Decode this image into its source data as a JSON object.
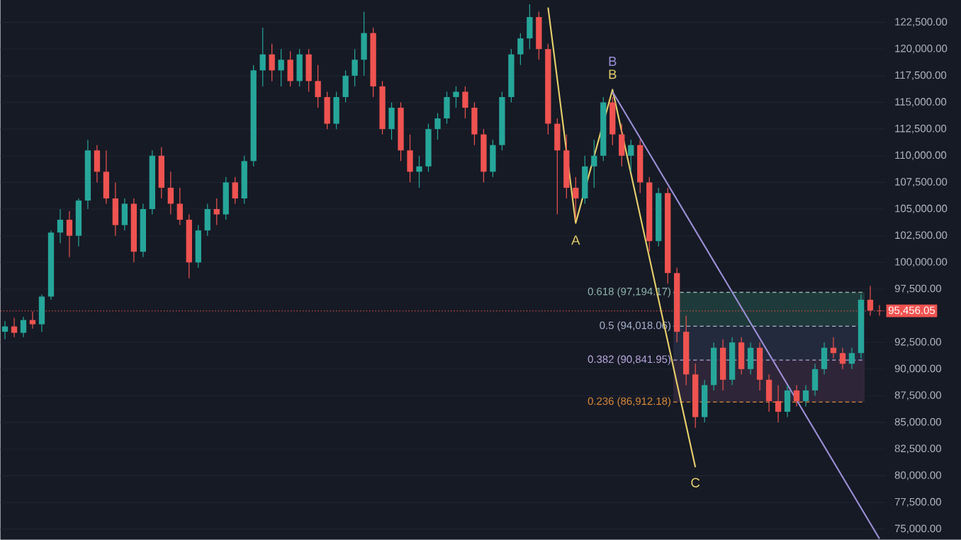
{
  "chart_data": {
    "type": "candlestick",
    "categories": [
      null,
      null,
      null,
      null,
      null,
      null,
      null,
      null,
      null,
      null,
      null,
      null,
      null,
      null,
      null,
      null,
      null,
      null,
      null,
      null,
      null,
      null,
      null,
      null,
      null,
      null,
      null,
      null,
      null,
      null,
      null,
      null,
      null,
      null,
      null,
      null,
      null,
      null,
      null,
      null,
      null,
      null,
      null,
      null,
      null,
      null,
      null,
      null,
      null,
      null,
      null,
      null,
      null,
      null,
      null,
      null,
      null,
      null,
      null,
      null,
      null,
      null,
      null,
      null,
      null,
      null,
      null,
      null,
      null,
      null,
      null,
      null,
      null,
      null,
      null,
      null,
      null,
      null,
      null,
      null,
      null,
      null,
      null,
      null,
      null,
      null,
      null,
      null,
      null,
      null,
      null,
      null,
      null,
      null,
      null,
      null
    ],
    "ohlc": [
      [
        93500,
        94500,
        92800,
        94000
      ],
      [
        94000,
        94800,
        93000,
        93400
      ],
      [
        93400,
        94900,
        93000,
        94600
      ],
      [
        94600,
        95400,
        93800,
        94200
      ],
      [
        94200,
        97000,
        93500,
        96800
      ],
      [
        96800,
        103000,
        96500,
        102800
      ],
      [
        102800,
        105000,
        101800,
        104000
      ],
      [
        104000,
        104800,
        100500,
        102500
      ],
      [
        102500,
        106000,
        101500,
        105800
      ],
      [
        105800,
        111500,
        105000,
        110500
      ],
      [
        110500,
        111000,
        107500,
        108500
      ],
      [
        108500,
        110500,
        105500,
        106000
      ],
      [
        106000,
        107500,
        102500,
        103500
      ],
      [
        103500,
        106000,
        103000,
        105500
      ],
      [
        105500,
        106000,
        100000,
        101000
      ],
      [
        101000,
        105500,
        100500,
        105000
      ],
      [
        105000,
        110500,
        104500,
        110000
      ],
      [
        110000,
        110800,
        106000,
        107000
      ],
      [
        107000,
        108500,
        104500,
        105500
      ],
      [
        105500,
        107000,
        103500,
        104000
      ],
      [
        104000,
        104500,
        98500,
        100000
      ],
      [
        100000,
        103500,
        99500,
        103000
      ],
      [
        103000,
        105500,
        102500,
        105000
      ],
      [
        105000,
        106000,
        103500,
        104500
      ],
      [
        104500,
        108000,
        104000,
        107500
      ],
      [
        107500,
        108000,
        105500,
        106000
      ],
      [
        106000,
        110000,
        105500,
        109500
      ],
      [
        109500,
        118500,
        109000,
        118000
      ],
      [
        118000,
        122000,
        116500,
        119500
      ],
      [
        119500,
        120500,
        117000,
        118000
      ],
      [
        118000,
        120000,
        116500,
        119000
      ],
      [
        119000,
        119800,
        116500,
        117000
      ],
      [
        117000,
        120000,
        116500,
        119500
      ],
      [
        119500,
        120000,
        116000,
        117000
      ],
      [
        117000,
        118500,
        114500,
        115500
      ],
      [
        115500,
        116000,
        112500,
        113000
      ],
      [
        113000,
        116000,
        112500,
        115500
      ],
      [
        115500,
        118000,
        115000,
        117500
      ],
      [
        117500,
        120000,
        116500,
        119000
      ],
      [
        119000,
        123500,
        117500,
        121500
      ],
      [
        121500,
        122000,
        115500,
        116500
      ],
      [
        116500,
        117000,
        112000,
        112500
      ],
      [
        112500,
        115000,
        111500,
        114500
      ],
      [
        114500,
        115000,
        109500,
        110500
      ],
      [
        110500,
        112000,
        107500,
        108500
      ],
      [
        108500,
        110000,
        107000,
        109000
      ],
      [
        109000,
        113000,
        108500,
        112500
      ],
      [
        112500,
        114000,
        111500,
        113500
      ],
      [
        113500,
        116000,
        113000,
        115500
      ],
      [
        115500,
        116500,
        114500,
        116000
      ],
      [
        116000,
        116500,
        113500,
        114500
      ],
      [
        114500,
        115000,
        111000,
        112000
      ],
      [
        112000,
        112500,
        107500,
        108500
      ],
      [
        108500,
        111500,
        108000,
        111000
      ],
      [
        111000,
        116000,
        110500,
        115500
      ],
      [
        115500,
        120000,
        115000,
        119500
      ],
      [
        119500,
        121500,
        118500,
        121000
      ],
      [
        121000,
        124200,
        120000,
        123000
      ],
      [
        123000,
        123500,
        119000,
        120000
      ],
      [
        120000,
        120500,
        112000,
        113000
      ],
      [
        113000,
        113500,
        104500,
        110500
      ],
      [
        110500,
        112000,
        106000,
        107000
      ],
      [
        107000,
        108000,
        104000,
        106000
      ],
      [
        106000,
        110000,
        105500,
        109000
      ],
      [
        109000,
        111500,
        107000,
        110000
      ],
      [
        110000,
        115500,
        109500,
        115000
      ],
      [
        115000,
        115500,
        111000,
        112000
      ],
      [
        112000,
        113000,
        109000,
        110000
      ],
      [
        110000,
        111500,
        108500,
        111000
      ],
      [
        111000,
        111500,
        106500,
        107500
      ],
      [
        107500,
        108000,
        101000,
        102000
      ],
      [
        102000,
        107000,
        101500,
        106500
      ],
      [
        106500,
        107000,
        98000,
        99000
      ],
      [
        99000,
        99500,
        92500,
        93500
      ],
      [
        93500,
        95000,
        88500,
        89500
      ],
      [
        89500,
        90500,
        84500,
        85500
      ],
      [
        85500,
        89000,
        85000,
        88500
      ],
      [
        88500,
        92500,
        88000,
        92000
      ],
      [
        92000,
        92800,
        88000,
        89000
      ],
      [
        89000,
        93000,
        88500,
        92500
      ],
      [
        92500,
        93000,
        89500,
        90000
      ],
      [
        90000,
        92500,
        89500,
        92000
      ],
      [
        92000,
        92500,
        88000,
        89000
      ],
      [
        89000,
        89500,
        86000,
        87000
      ],
      [
        87000,
        88500,
        85000,
        86000
      ],
      [
        86000,
        88500,
        85500,
        88000
      ],
      [
        88000,
        88500,
        86500,
        87000
      ],
      [
        87000,
        88500,
        86500,
        88000
      ],
      [
        88000,
        90500,
        87500,
        90000
      ],
      [
        90000,
        92500,
        89500,
        92000
      ],
      [
        92000,
        93000,
        91000,
        91500
      ],
      [
        91500,
        92000,
        90000,
        90500
      ],
      [
        90500,
        92000,
        90000,
        91500
      ],
      [
        91500,
        97000,
        91000,
        96500
      ],
      [
        96500,
        97800,
        95000,
        95500
      ],
      [
        95500,
        96000,
        95000,
        95456.05
      ]
    ],
    "colors": [
      "#26a69a",
      "#ef5350",
      "#26a69a",
      "#ef5350",
      "#26a69a",
      "#26a69a",
      "#26a69a",
      "#ef5350",
      "#26a69a",
      "#26a69a",
      "#ef5350",
      "#ef5350",
      "#ef5350",
      "#26a69a",
      "#ef5350",
      "#26a69a",
      "#26a69a",
      "#ef5350",
      "#ef5350",
      "#ef5350",
      "#ef5350",
      "#26a69a",
      "#26a69a",
      "#ef5350",
      "#26a69a",
      "#ef5350",
      "#26a69a",
      "#26a69a",
      "#26a69a",
      "#ef5350",
      "#26a69a",
      "#ef5350",
      "#26a69a",
      "#ef5350",
      "#ef5350",
      "#ef5350",
      "#26a69a",
      "#26a69a",
      "#26a69a",
      "#26a69a",
      "#ef5350",
      "#ef5350",
      "#26a69a",
      "#ef5350",
      "#ef5350",
      "#26a69a",
      "#26a69a",
      "#26a69a",
      "#26a69a",
      "#26a69a",
      "#ef5350",
      "#ef5350",
      "#ef5350",
      "#26a69a",
      "#26a69a",
      "#26a69a",
      "#26a69a",
      "#26a69a",
      "#ef5350",
      "#ef5350",
      "#ef5350",
      "#ef5350",
      "#ef5350",
      "#26a69a",
      "#26a69a",
      "#26a69a",
      "#ef5350",
      "#ef5350",
      "#26a69a",
      "#ef5350",
      "#ef5350",
      "#26a69a",
      "#ef5350",
      "#ef5350",
      "#ef5350",
      "#ef5350",
      "#26a69a",
      "#26a69a",
      "#ef5350",
      "#26a69a",
      "#ef5350",
      "#26a69a",
      "#ef5350",
      "#ef5350",
      "#ef5350",
      "#26a69a",
      "#ef5350",
      "#26a69a",
      "#26a69a",
      "#26a69a",
      "#ef5350",
      "#ef5350",
      "#26a69a",
      "#26a69a",
      "#ef5350",
      "#ef5350"
    ],
    "series": [
      {
        "type": "line",
        "color": "#e6cf6b",
        "values": [
          null,
          null,
          null,
          null,
          null,
          null,
          null,
          null,
          null,
          null,
          null,
          null,
          null,
          null,
          null,
          null,
          null,
          null,
          null,
          null,
          null,
          null,
          null,
          null,
          null,
          null,
          null,
          null,
          null,
          null,
          null,
          null,
          null,
          null,
          null,
          null,
          null,
          null,
          null,
          null,
          null,
          null,
          null,
          null,
          null,
          null,
          null,
          null,
          null,
          null,
          null,
          null,
          null,
          null,
          null,
          null,
          null,
          null,
          null,
          123900,
          null,
          null,
          103700,
          null,
          null,
          null,
          116200,
          null,
          null,
          null,
          null,
          null,
          null,
          null,
          null,
          80800,
          null,
          null,
          null,
          null,
          null,
          null,
          null,
          null,
          null,
          null,
          null,
          null,
          null,
          null,
          null,
          null,
          null,
          null,
          null,
          null
        ]
      },
      {
        "type": "line",
        "color": "#9c8fd6",
        "values": [
          null,
          null,
          null,
          null,
          null,
          null,
          null,
          null,
          null,
          null,
          null,
          null,
          null,
          null,
          null,
          null,
          null,
          null,
          null,
          null,
          null,
          null,
          null,
          null,
          null,
          null,
          null,
          null,
          null,
          null,
          null,
          null,
          null,
          null,
          null,
          null,
          null,
          null,
          null,
          null,
          null,
          null,
          null,
          null,
          null,
          null,
          null,
          null,
          null,
          null,
          null,
          null,
          null,
          null,
          null,
          null,
          null,
          null,
          null,
          null,
          null,
          null,
          null,
          null,
          null,
          null,
          116000,
          null,
          null,
          null,
          null,
          null,
          null,
          null,
          null,
          null,
          null,
          null,
          null,
          null,
          null,
          null,
          null,
          null,
          null,
          null,
          null,
          null,
          null,
          null,
          null,
          null,
          null,
          null,
          null,
          74100
        ]
      }
    ],
    "ylim": [
      74000,
      124600
    ],
    "yticks": [
      {
        "value": 75000,
        "label": "75,000.00"
      },
      {
        "value": 77500,
        "label": "77,500.00"
      },
      {
        "value": 80000,
        "label": "80,000.00"
      },
      {
        "value": 82500,
        "label": "82,500.00"
      },
      {
        "value": 85000,
        "label": "85,000.00"
      },
      {
        "value": 87500,
        "label": "87,500.00"
      },
      {
        "value": 90000,
        "label": "90,000.00"
      },
      {
        "value": 92500,
        "label": "92,500.00"
      },
      {
        "value": 97500,
        "label": "97,500.00"
      },
      {
        "value": 100000,
        "label": "100,000.00"
      },
      {
        "value": 102500,
        "label": "102,500.00"
      },
      {
        "value": 105000,
        "label": "105,000.00"
      },
      {
        "value": 107500,
        "label": "107,500.00"
      },
      {
        "value": 110000,
        "label": "110,000.00"
      },
      {
        "value": 112500,
        "label": "112,500.00"
      },
      {
        "value": 115000,
        "label": "115,000.00"
      },
      {
        "value": 117500,
        "label": "117,500.00"
      },
      {
        "value": 120000,
        "label": "120,000.00"
      },
      {
        "value": 122500,
        "label": "122,500.00"
      }
    ],
    "tick_labels": "y",
    "grid": "y",
    "bands": [
      {
        "axis": "y",
        "from": 94018.06,
        "to": 97194.17,
        "color": "#1f3a3a"
      },
      {
        "axis": "y",
        "from": 90841.95,
        "to": 94018.06,
        "color": "#232a3d"
      },
      {
        "axis": "y",
        "from": 86912.18,
        "to": 90841.95,
        "color": "#2e2638"
      }
    ],
    "ref_lines": [
      {
        "axis": "y",
        "value": 97194.17,
        "label": "0.618 (97,194.17)",
        "color": "#8fb5ad",
        "line_style": "dashed"
      },
      {
        "axis": "y",
        "value": 94018.06,
        "label": "0.5 (94,018.06)",
        "color": "#a9b3cf",
        "line_style": "dashed"
      },
      {
        "axis": "y",
        "value": 90841.95,
        "label": "0.382 (90,841.95)",
        "color": "#b7a7dc",
        "line_style": "dashed"
      },
      {
        "axis": "y",
        "value": 86912.18,
        "label": "0.236 (86,912.18)",
        "color": "#d9893a",
        "line_style": "dashed"
      },
      {
        "axis": "y",
        "value": 95456.05,
        "label": "95,456.05",
        "color": "#ef5350",
        "line_style": "dotted"
      }
    ],
    "annotations": [
      "A",
      "B",
      "C",
      "B"
    ]
  }
}
